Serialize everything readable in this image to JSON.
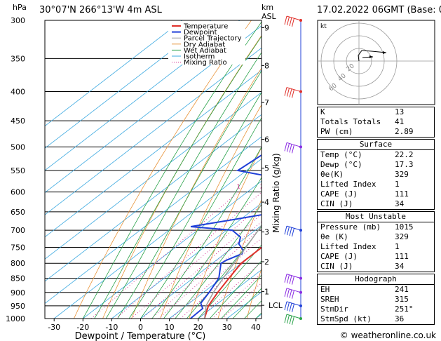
{
  "header": {
    "location": "30°07'N  266°13'W  4m  ASL",
    "datetime": "17.02.2022  06GMT  (Base: 00)"
  },
  "footer": {
    "credit": "© weatheronline.co.uk"
  },
  "colors": {
    "temperature": "#e0302a",
    "dewpoint": "#2040d8",
    "parcel": "#a0a0a0",
    "dry_adiabat": "#e8943a",
    "wet_adiabat": "#2aa24a",
    "isotherm": "#3aa8e0",
    "mixing_ratio": "#d0208a",
    "wind": "#8a2be2"
  },
  "stats": {
    "top": [
      {
        "label": "K",
        "value": "13"
      },
      {
        "label": "Totals Totals",
        "value": "41"
      },
      {
        "label": "PW (cm)",
        "value": "2.89"
      }
    ],
    "surface": {
      "title": "Surface",
      "rows": [
        {
          "label": "Temp (°C)",
          "value": "22.2"
        },
        {
          "label": "Dewp (°C)",
          "value": "17.3"
        },
        {
          "label": "θe(K)",
          "value": "329"
        },
        {
          "label": "Lifted Index",
          "value": "1"
        },
        {
          "label": "CAPE (J)",
          "value": "111"
        },
        {
          "label": "CIN (J)",
          "value": "34"
        }
      ]
    },
    "unstable": {
      "title": "Most Unstable",
      "rows": [
        {
          "label": "Pressure (mb)",
          "value": "1015"
        },
        {
          "label": "θe (K)",
          "value": "329"
        },
        {
          "label": "Lifted Index",
          "value": "1"
        },
        {
          "label": "CAPE (J)",
          "value": "111"
        },
        {
          "label": "CIN (J)",
          "value": "34"
        }
      ]
    },
    "hodograph": {
      "title": "Hodograph",
      "rows": [
        {
          "label": "EH",
          "value": "241"
        },
        {
          "label": "SREH",
          "value": "315"
        },
        {
          "label": "StmDir",
          "value": "251°"
        },
        {
          "label": "StmSpd (kt)",
          "value": "36"
        }
      ]
    }
  },
  "chart_data": {
    "type": "line",
    "diagram": "skew-T log-P",
    "xlabel": "Dewpoint / Temperature (°C)",
    "ylabel": "hPa",
    "right_label_km": "km\nASL",
    "mixing_ratio_axis_label": "Mixing Ratio (g/kg)",
    "xlim": [
      -35,
      40
    ],
    "ylim": [
      1000,
      300
    ],
    "x_ticks": [
      -30,
      -20,
      -10,
      0,
      10,
      20,
      30,
      40
    ],
    "pressure_ticks": [
      300,
      350,
      400,
      450,
      500,
      550,
      600,
      650,
      700,
      750,
      800,
      850,
      900,
      950,
      1000
    ],
    "km_ticks": [
      {
        "label": "9",
        "p": 309
      },
      {
        "label": "8",
        "p": 360
      },
      {
        "label": "7",
        "p": 418
      },
      {
        "label": "6",
        "p": 485
      },
      {
        "label": "5",
        "p": 545
      },
      {
        "label": "4",
        "p": 625
      },
      {
        "label": "3",
        "p": 705
      },
      {
        "label": "2",
        "p": 795
      },
      {
        "label": "1",
        "p": 897
      },
      {
        "label": "LCL",
        "p": 948
      }
    ],
    "mixing_ratio_labels": [
      "1",
      "2",
      "3",
      "4",
      "5",
      "6",
      "8",
      "10",
      "15",
      "20",
      "25"
    ],
    "legend": [
      "Temperature",
      "Dewpoint",
      "Parcel Trajectory",
      "Dry Adiabat",
      "Wet Adiabat",
      "Isotherm",
      "Mixing Ratio"
    ],
    "legend_position": "top-right",
    "series": [
      {
        "name": "Temperature",
        "points": [
          [
            1000,
            22.2
          ],
          [
            950,
            17.8
          ],
          [
            900,
            15.0
          ],
          [
            850,
            12.5
          ],
          [
            800,
            10.0
          ],
          [
            750,
            10.0
          ],
          [
            700,
            8.2
          ],
          [
            650,
            3.5
          ],
          [
            600,
            -1.5
          ],
          [
            550,
            -5.0
          ],
          [
            500,
            -10.0
          ],
          [
            450,
            -15.0
          ],
          [
            400,
            -21.0
          ],
          [
            350,
            -30.0
          ],
          [
            300,
            -39.0
          ]
        ]
      },
      {
        "name": "Dewpoint",
        "points": [
          [
            1000,
            17.3
          ],
          [
            960,
            17.0
          ],
          [
            940,
            14.0
          ],
          [
            900,
            12.0
          ],
          [
            850,
            9.0
          ],
          [
            800,
            3.0
          ],
          [
            790,
            3.5
          ],
          [
            770,
            6.0
          ],
          [
            760,
            5.0
          ],
          [
            740,
            0.5
          ],
          [
            720,
            -2.0
          ],
          [
            700,
            -8.0
          ],
          [
            690,
            -24.0
          ],
          [
            670,
            -12.0
          ],
          [
            655,
            -3.0
          ],
          [
            640,
            2.0
          ],
          [
            620,
            1.0
          ],
          [
            600,
            0.5
          ],
          [
            580,
            -3.0
          ],
          [
            550,
            -33.0
          ],
          [
            500,
            -31.0
          ],
          [
            480,
            -28.0
          ],
          [
            470,
            -40.0
          ],
          [
            450,
            -21.0
          ],
          [
            440,
            -26.0
          ],
          [
            400,
            -36.0
          ],
          [
            350,
            -39.0
          ],
          [
            320,
            -44.0
          ],
          [
            300,
            -44.0
          ]
        ]
      },
      {
        "name": "Parcel Trajectory",
        "points": [
          [
            1000,
            22.2
          ],
          [
            950,
            17.0
          ],
          [
            900,
            13.5
          ],
          [
            850,
            10.5
          ],
          [
            800,
            7.5
          ],
          [
            750,
            4.5
          ],
          [
            700,
            1.0
          ],
          [
            650,
            -3.0
          ],
          [
            600,
            -7.0
          ],
          [
            550,
            -11.5
          ],
          [
            500,
            -16.5
          ],
          [
            450,
            -22.5
          ],
          [
            400,
            -29.5
          ],
          [
            350,
            -37.5
          ],
          [
            300,
            -46.5
          ]
        ]
      }
    ],
    "wind_levels_hpa": [
      300,
      400,
      500,
      700,
      850,
      900,
      950,
      1000
    ],
    "hodograph_labels": [
      "kt",
      "20",
      "40",
      "60"
    ]
  }
}
